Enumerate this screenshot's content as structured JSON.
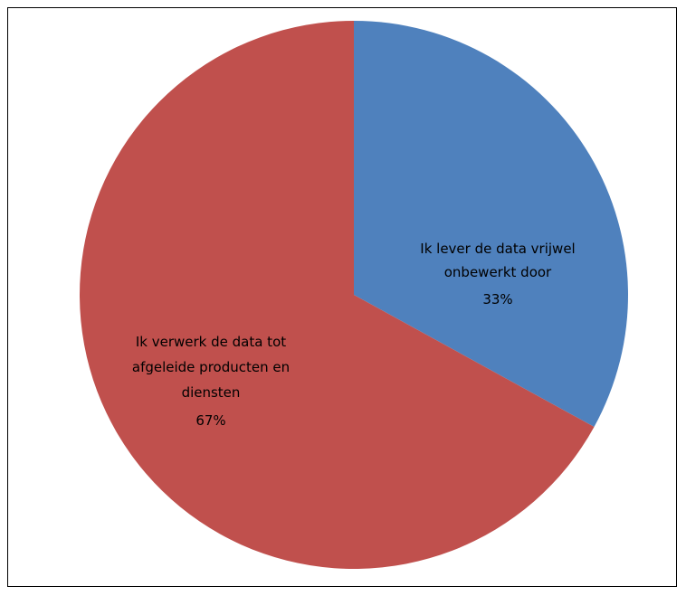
{
  "chart_data": {
    "type": "pie",
    "slices": [
      {
        "label_lines": [
          "Ik lever de data vrijwel",
          "onbewerkt door"
        ],
        "value": 33,
        "percent_label": "33%",
        "color": "#4F81BD"
      },
      {
        "label_lines": [
          "Ik verwerk de data tot",
          "afgeleide producten en",
          "diensten"
        ],
        "value": 67,
        "percent_label": "67%",
        "color": "#C0504D"
      }
    ],
    "start": "12-o'clock, clockwise",
    "legend": "none",
    "border_color": "#000000"
  }
}
